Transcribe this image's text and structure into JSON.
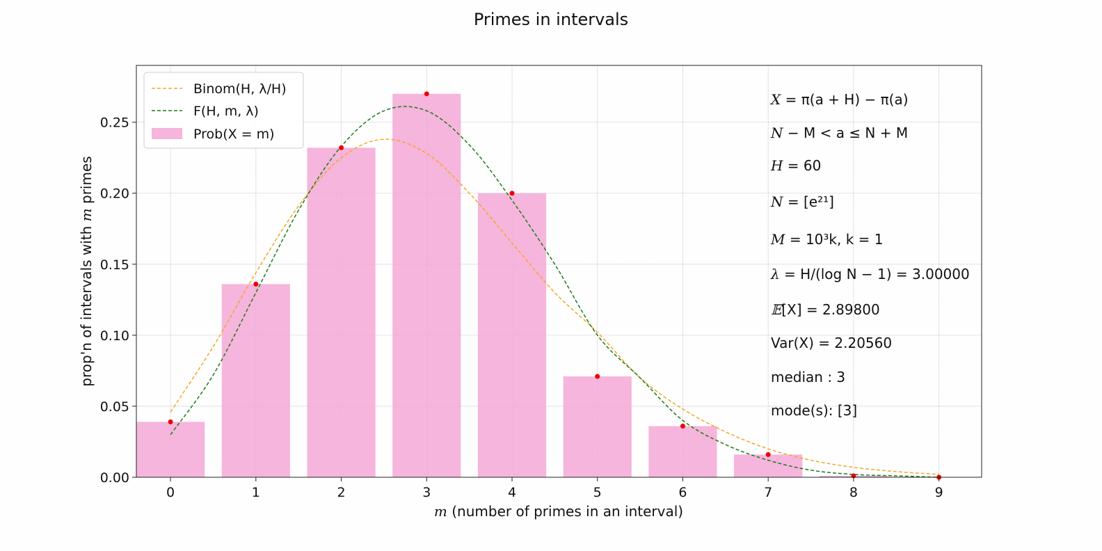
{
  "chart_data": {
    "type": "bar",
    "title": "Primes in intervals",
    "xlabel_var": "m",
    "xlabel_rest": " (number of primes in an interval)",
    "ylabel_prefix": "prop'n of intervals with ",
    "ylabel_var": "m",
    "ylabel_suffix": " primes",
    "xlim": [
      -0.4,
      9.5
    ],
    "ylim": [
      0,
      0.29
    ],
    "categories": [
      "0",
      "1",
      "2",
      "3",
      "4",
      "5",
      "6",
      "7",
      "8",
      "9"
    ],
    "x": [
      0,
      1,
      2,
      3,
      4,
      5,
      6,
      7,
      8,
      9
    ],
    "yticks": [
      "0.00",
      "0.05",
      "0.10",
      "0.15",
      "0.20",
      "0.25"
    ],
    "ytick_values": [
      0,
      0.05,
      0.1,
      0.15,
      0.2,
      0.25
    ],
    "grid": true,
    "legend_position": "top-left",
    "series": [
      {
        "name": "Prob(X = m)",
        "kind": "bar",
        "color": "#f4a8d6",
        "values": [
          0.039,
          0.136,
          0.232,
          0.27,
          0.2,
          0.071,
          0.036,
          0.016,
          0.001,
          0.0
        ]
      },
      {
        "name": "",
        "kind": "scatter",
        "color": "#ee0000",
        "values": [
          0.039,
          0.136,
          0.232,
          0.27,
          0.2,
          0.071,
          0.036,
          0.016,
          0.001,
          0.0
        ]
      },
      {
        "name": "Binom(H, λ/H)",
        "kind": "line",
        "style": "dashed",
        "color": "#f5a623",
        "x": [
          0,
          0.5,
          1,
          1.5,
          2,
          2.5,
          3,
          3.5,
          4,
          4.5,
          5,
          5.5,
          6,
          6.5,
          7,
          7.5,
          8,
          8.5,
          9
        ],
        "values": [
          0.046,
          0.092,
          0.144,
          0.191,
          0.225,
          0.238,
          0.228,
          0.2,
          0.165,
          0.13,
          0.102,
          0.07,
          0.048,
          0.032,
          0.02,
          0.012,
          0.007,
          0.004,
          0.002
        ]
      },
      {
        "name": "F(H, m, λ)",
        "kind": "line",
        "style": "dashed",
        "color": "#1a7a1a",
        "x": [
          0,
          0.5,
          1,
          1.5,
          2,
          2.5,
          3,
          3.5,
          4,
          4.5,
          5,
          5.5,
          6,
          6.5,
          7,
          7.5,
          8,
          8.5,
          9
        ],
        "values": [
          0.03,
          0.072,
          0.13,
          0.188,
          0.233,
          0.258,
          0.258,
          0.234,
          0.195,
          0.15,
          0.1,
          0.07,
          0.04,
          0.023,
          0.012,
          0.005,
          0.002,
          0.001,
          0.0
        ]
      }
    ],
    "annotations": [
      {
        "var": "X",
        "text": " = π(a + H) − π(a)"
      },
      {
        "var": "N",
        "text": " − M < a ≤ N + M"
      },
      {
        "var": "H",
        "text": " = 60"
      },
      {
        "var": "N",
        "text": " = [e²¹]"
      },
      {
        "var": "M",
        "text": " = 10³k, k = 1"
      },
      {
        "var": "λ",
        "text": " = H/(log N − 1) = 3.00000"
      },
      {
        "var": "𝔼",
        "text": "[X] = 2.89800"
      },
      {
        "var": "",
        "text": "Var(X) = 2.20560"
      },
      {
        "var": "",
        "text": "median : 3"
      },
      {
        "var": "",
        "text": "mode(s): [3]"
      }
    ]
  }
}
